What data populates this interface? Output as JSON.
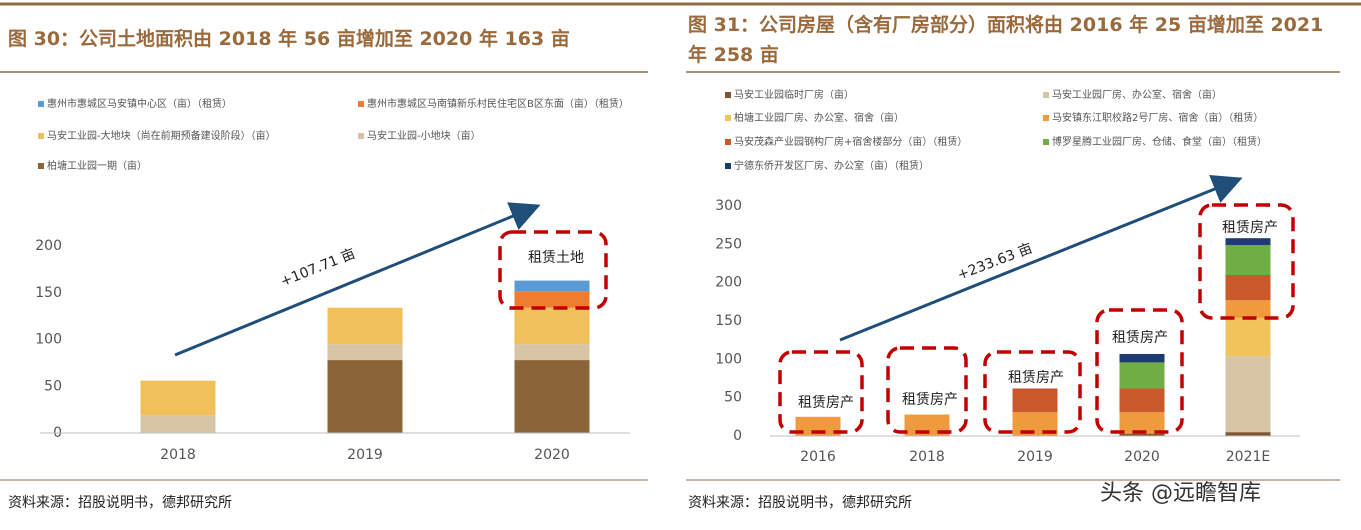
{
  "chart_data": [
    {
      "type": "stacked_bar",
      "title": "图 30：公司土地面积由 2018 年 56 亩增加至 2020 年 163 亩",
      "categories": [
        "2018",
        "2019",
        "2020"
      ],
      "series": [
        {
          "name": "柏塘工业园一期（亩）",
          "color": "#8b6538",
          "values": [
            0,
            78,
            78
          ]
        },
        {
          "name": "马安工业园-小地块（亩）",
          "color": "#d6c4a4",
          "values": [
            19,
            17,
            17
          ]
        },
        {
          "name": "马安工业园-大地块（尚在前期预备建设阶段）（亩）",
          "color": "#f0c05a",
          "values": [
            37,
            39,
            39
          ]
        },
        {
          "name": "惠州市惠城区马南镇新乐村民住宅区B区东面（亩）（租赁）",
          "color": "#ee7d31",
          "values": [
            0,
            0,
            17
          ]
        },
        {
          "name": "惠州市惠城区马安镇中心区（亩）（租赁）",
          "color": "#5b9bd5",
          "values": [
            0,
            0,
            12
          ]
        }
      ],
      "legend_reversed": true,
      "ylim": [
        0,
        200
      ],
      "yticks": [
        0,
        50,
        100,
        150,
        200
      ],
      "annotations": [
        "+107.71 亩",
        "租赁土地"
      ],
      "source": "资料来源：招股说明书，德邦研究所"
    },
    {
      "type": "stacked_bar",
      "title": "图 31：公司房屋（含有厂房部分）面积将由 2016 年 25 亩增加至 2021 年 258 亩",
      "categories": [
        "2016",
        "2018",
        "2019",
        "2020",
        "2021E"
      ],
      "series": [
        {
          "name": "马安工业园临时厂房（亩）",
          "color": "#7f5530",
          "values": [
            0,
            0,
            0,
            3,
            5
          ]
        },
        {
          "name": "马安工业园厂房、办公室、宿舍（亩）",
          "color": "#d6c4a4",
          "values": [
            0,
            0,
            0,
            0,
            99
          ]
        },
        {
          "name": "柏塘工业园厂房、办公室、宿舍（亩）",
          "color": "#f2c35a",
          "values": [
            0,
            0,
            0,
            0,
            50
          ]
        },
        {
          "name": "马安镇东江职校路2号厂房、宿舍（亩）（租赁）",
          "color": "#ef9a3c",
          "values": [
            25,
            28,
            31,
            28,
            23
          ]
        },
        {
          "name": "马安茂森产业园钢构厂房+宿舍楼部分（亩）（租赁）",
          "color": "#c9582b",
          "values": [
            0,
            0,
            31,
            31,
            33
          ]
        },
        {
          "name": "博罗星腾工业园厂房、仓储、食堂（亩）（租赁）",
          "color": "#6fae45",
          "values": [
            0,
            0,
            0,
            34,
            39
          ]
        },
        {
          "name": "宁德东侨开发区厂房、办公室（亩）（租赁）",
          "color": "#1f3a6e",
          "values": [
            0,
            0,
            0,
            11,
            9
          ]
        }
      ],
      "legend_reversed": false,
      "ylim": [
        0,
        300
      ],
      "yticks": [
        0,
        50,
        100,
        150,
        200,
        250,
        300
      ],
      "annotations": [
        "+233.63 亩",
        "租赁房产",
        "租赁房产",
        "租赁房产",
        "租赁房产",
        "租赁房产"
      ],
      "source": "资料来源：招股说明书，德邦研究所"
    }
  ],
  "watermark": "头条 @远瞻智库"
}
